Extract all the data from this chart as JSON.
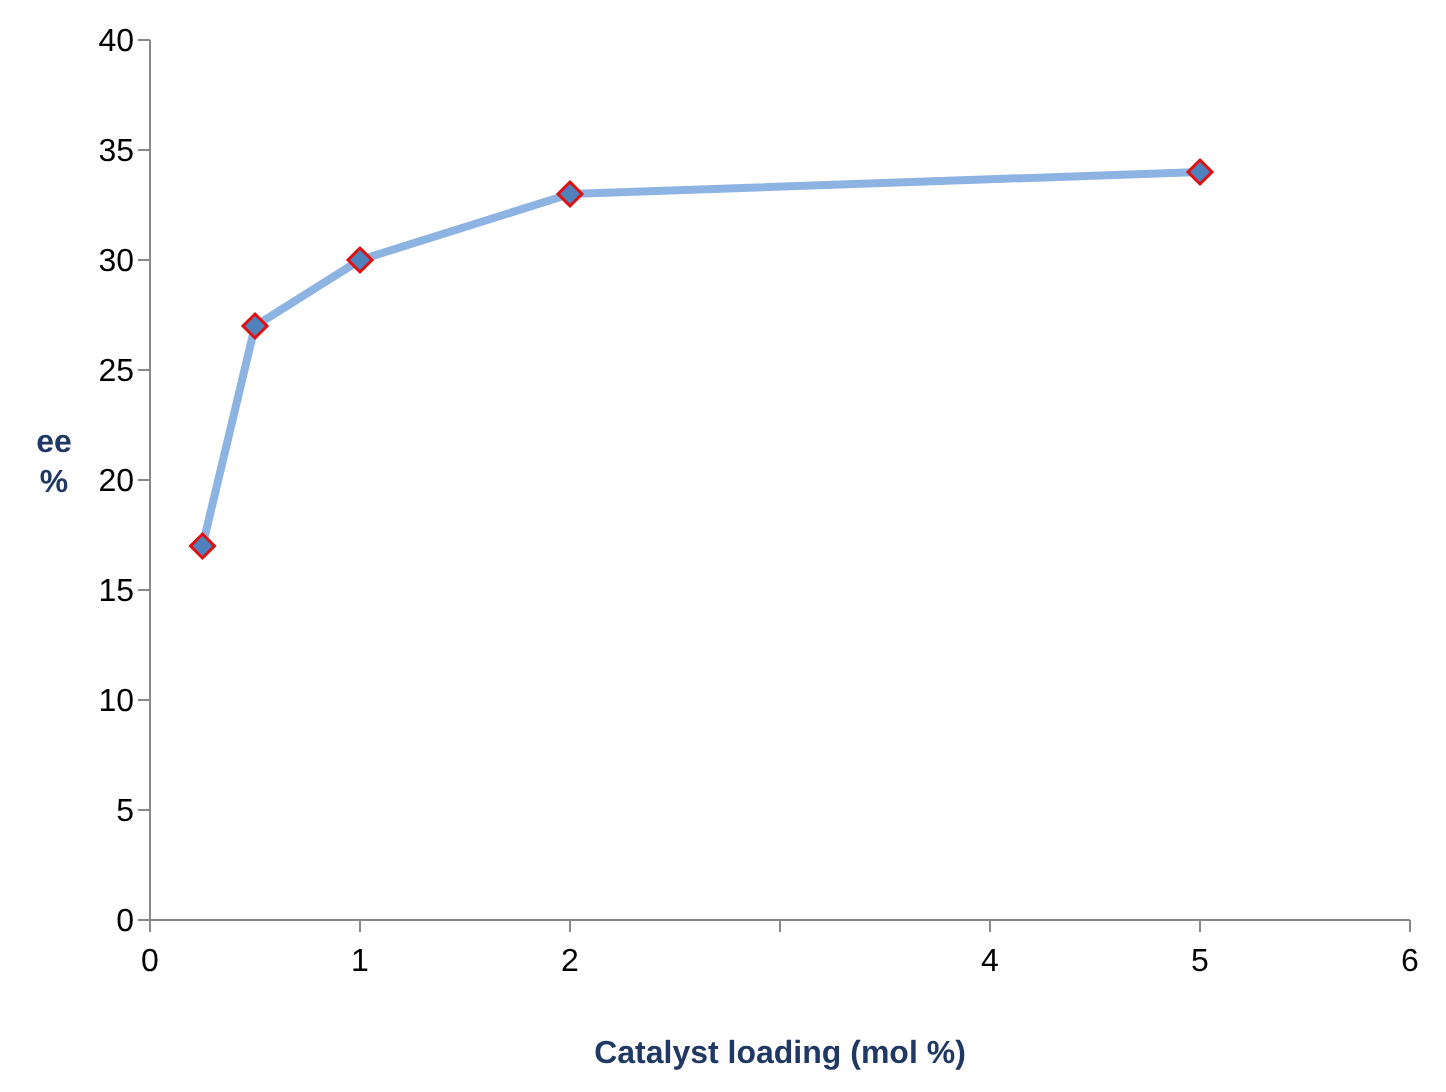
{
  "chart_data": {
    "type": "line",
    "xlabel": "Catalyst loading (mol %)",
    "ylabel": "ee %",
    "x": [
      0.25,
      0.5,
      1,
      2,
      5
    ],
    "series": [
      {
        "color": "#8db3e2",
        "values": [
          17,
          27,
          30,
          33,
          34
        ]
      }
    ],
    "xlim": [
      0,
      6
    ],
    "xticks": [
      0,
      1,
      2,
      {
        "value": 3,
        "label": null
      },
      4,
      5,
      6
    ],
    "ylim": [
      0,
      40
    ],
    "yticks": [
      0,
      5,
      10,
      15,
      20,
      25,
      30,
      35,
      40
    ],
    "marker": "diamond",
    "grid": false
  }
}
